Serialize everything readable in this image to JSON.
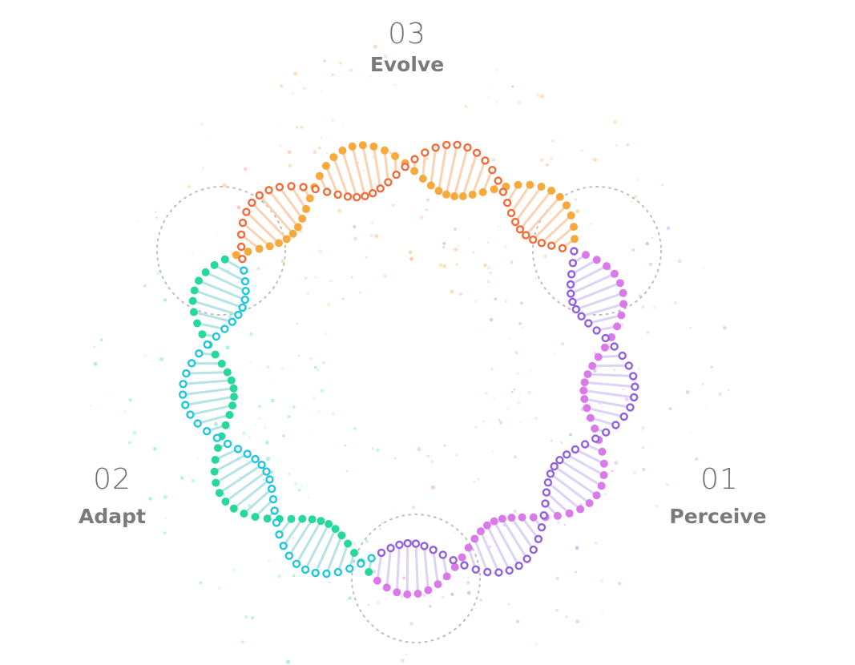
{
  "stages": [
    {
      "id": "evolve",
      "number": "03",
      "name": "Evolve",
      "colors": {
        "filled": "#f7a93c",
        "ring": "#f26b3a",
        "stem": "#f9d3b3"
      }
    },
    {
      "id": "adapt",
      "number": "02",
      "name": "Adapt",
      "colors": {
        "filled": "#26d99b",
        "ring": "#1ec6de",
        "stem": "#b6e3e6"
      }
    },
    {
      "id": "perceive",
      "number": "01",
      "name": "Perceive",
      "colors": {
        "filled": "#d97ae8",
        "ring": "#8f60e0",
        "stem": "#dcd3f5"
      }
    }
  ],
  "transition_circle_color": "#bdbdbd"
}
